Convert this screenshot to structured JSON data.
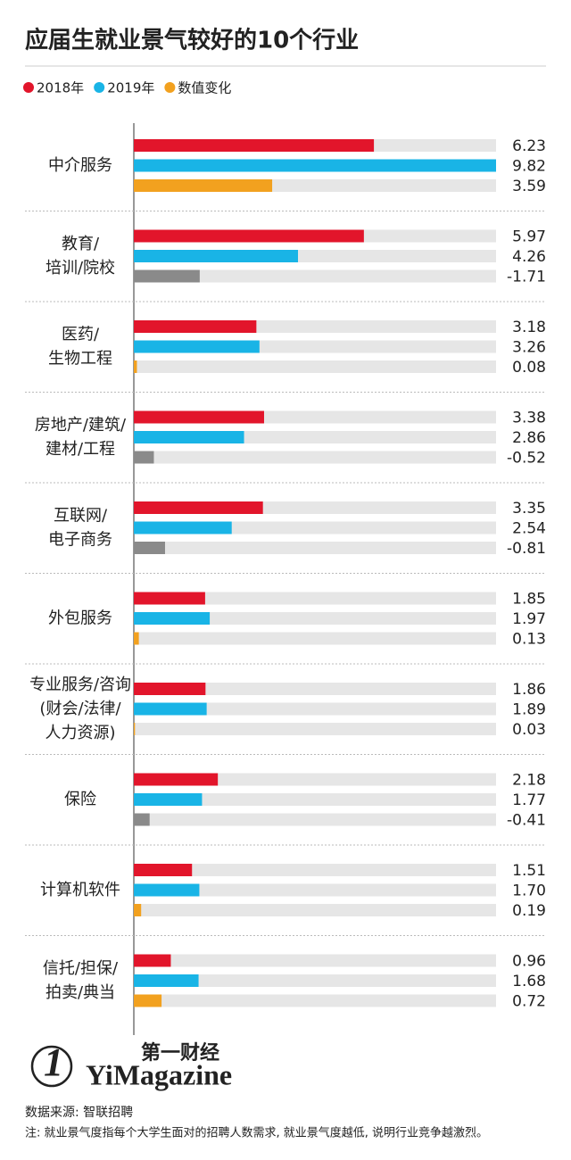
{
  "chart_data": {
    "type": "bar",
    "orientation": "horizontal",
    "title": "应届生就业景气较好的10个行业",
    "categories": [
      [
        "中介服务"
      ],
      [
        "教育/",
        "培训/院校"
      ],
      [
        "医药/",
        "生物工程"
      ],
      [
        "房地产/建筑/",
        "建材/工程"
      ],
      [
        "互联网/",
        "电子商务"
      ],
      [
        "外包服务"
      ],
      [
        "专业服务/咨询",
        "(财会/法律/",
        "人力资源)"
      ],
      [
        "保险"
      ],
      [
        "计算机软件"
      ],
      [
        "信托/担保/",
        "拍卖/典当"
      ]
    ],
    "series": [
      {
        "name": "2018年",
        "color": "#e2152b",
        "values": [
          6.23,
          5.97,
          3.18,
          3.38,
          3.35,
          1.85,
          1.86,
          2.18,
          1.51,
          0.96
        ],
        "value_labels": [
          "6.23",
          "5.97",
          "3.18",
          "3.38",
          "3.35",
          "1.85",
          "1.86",
          "2.18",
          "1.51",
          "0.96"
        ]
      },
      {
        "name": "2019年",
        "color": "#19b4e6",
        "values": [
          9.82,
          4.26,
          3.26,
          2.86,
          2.54,
          1.97,
          1.89,
          1.77,
          1.7,
          1.68
        ],
        "value_labels": [
          "9.82",
          "4.26",
          "3.26",
          "2.86",
          "2.54",
          "1.97",
          "1.89",
          "1.77",
          "1.70",
          "1.68"
        ]
      },
      {
        "name": "数值变化",
        "color": "#f2a11f",
        "negative_color": "#8a8a8a",
        "values": [
          3.59,
          -1.71,
          0.08,
          -0.52,
          -0.81,
          0.13,
          0.03,
          -0.41,
          0.19,
          0.72
        ],
        "value_labels": [
          "3.59",
          "-1.71",
          "0.08",
          "-0.52",
          "-0.81",
          "0.13",
          "0.03",
          "-0.41",
          "0.19",
          "0.72"
        ]
      }
    ],
    "xlim": [
      0,
      9.4
    ],
    "legend": "top-left",
    "logo_cn": "第一财经",
    "logo_en": "YiMagazine",
    "logo_mark": "1",
    "source": "数据来源: 智联招聘",
    "note": "注: 就业景气度指每个大学生面对的招聘人数需求, 就业景气度越低, 说明行业竞争越激烈。"
  }
}
